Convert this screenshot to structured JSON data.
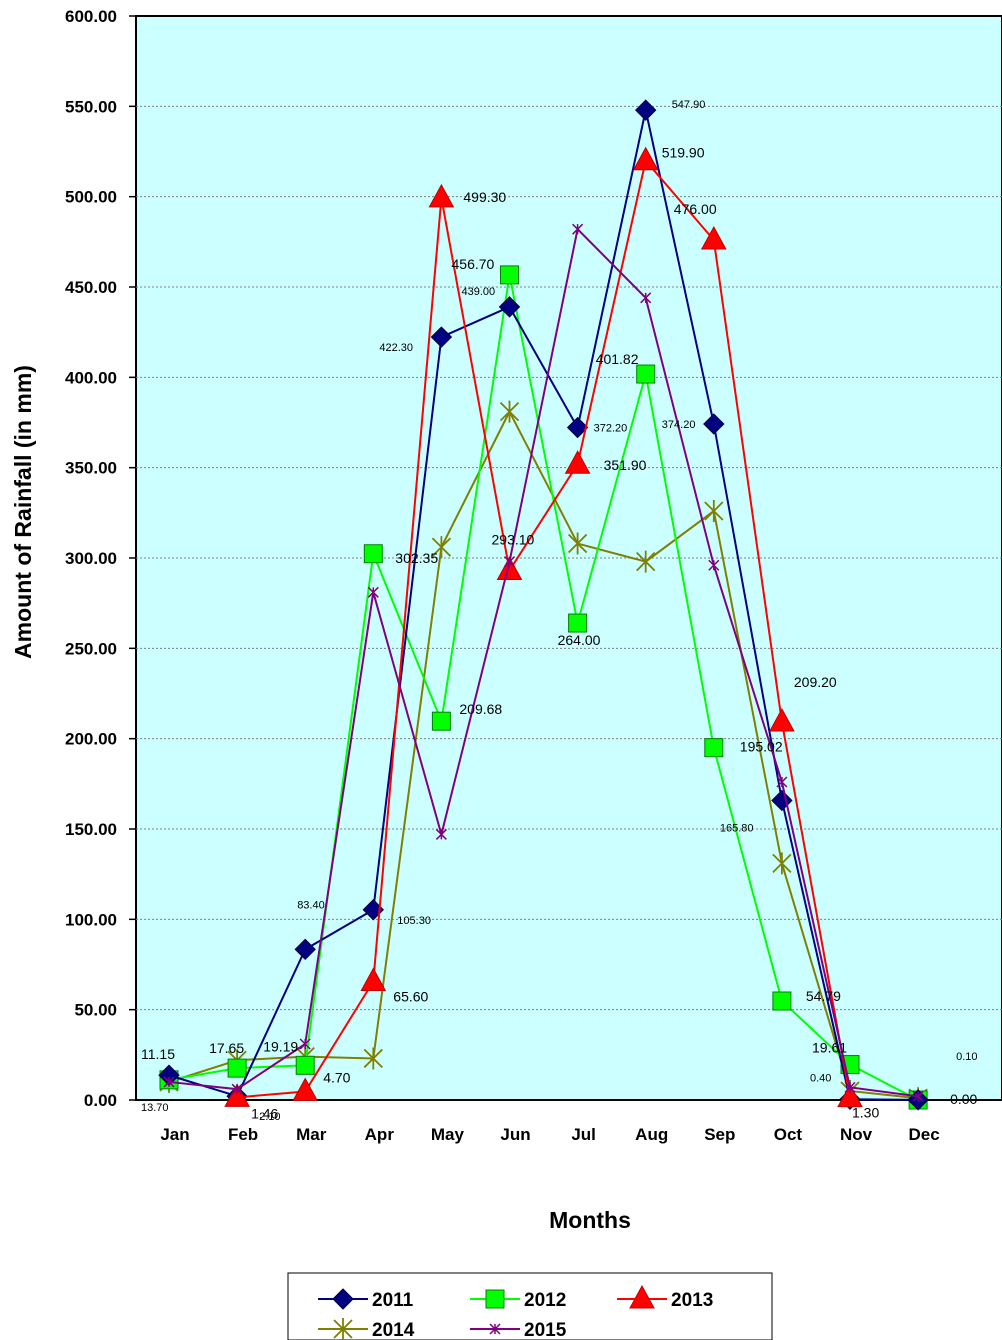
{
  "chart_data": {
    "type": "line",
    "title": "",
    "xlabel": "Months",
    "ylabel": "Amount of Rainfall (in mm)",
    "ylim": [
      0,
      600
    ],
    "y_ticks": [
      "0.00",
      "50.00",
      "100.00",
      "150.00",
      "200.00",
      "250.00",
      "300.00",
      "350.00",
      "400.00",
      "450.00",
      "500.00",
      "550.00",
      "600.00"
    ],
    "grid": "horizontal dotted",
    "plot_background": "#ccffff",
    "legend_position": "bottom",
    "categories": [
      "Jan",
      "Feb",
      "Mar",
      "Apr",
      "May",
      "Jun",
      "Jul",
      "Aug",
      "Sep",
      "Oct",
      "Nov",
      "Dec"
    ],
    "series": [
      {
        "name": "2011",
        "color": "#000080",
        "marker": "diamond",
        "values": [
          13.7,
          2.1,
          83.4,
          105.3,
          422.3,
          439.0,
          372.2,
          547.9,
          374.2,
          165.8,
          0.4,
          0.1
        ]
      },
      {
        "name": "2012",
        "color": "#00ff00",
        "marker": "square",
        "values": [
          11.15,
          17.65,
          19.19,
          302.35,
          209.68,
          456.7,
          264.0,
          401.82,
          195.02,
          54.79,
          19.61,
          0.0
        ]
      },
      {
        "name": "2013",
        "color": "#ff0000",
        "marker": "triangle",
        "values": [
          null,
          1.46,
          4.7,
          65.6,
          499.3,
          293.1,
          351.9,
          519.9,
          476.0,
          209.2,
          1.3,
          null
        ]
      },
      {
        "name": "2014",
        "color": "#808000",
        "marker": "star",
        "values": [
          10,
          22,
          24,
          23,
          306,
          381,
          308,
          298,
          326,
          131,
          5,
          1
        ]
      },
      {
        "name": "2015",
        "color": "#800080",
        "marker": "cross",
        "values": [
          10,
          6,
          31,
          281,
          147,
          298,
          482,
          444,
          296,
          176,
          7,
          2
        ]
      }
    ],
    "data_labels": [
      {
        "text": "13.70",
        "series": 0,
        "index": 0,
        "dx": -28,
        "dy": 36,
        "size": "sm"
      },
      {
        "text": "2.10",
        "series": 0,
        "index": 1,
        "dx": 22,
        "dy": 24,
        "size": "sm"
      },
      {
        "text": "83.40",
        "series": 0,
        "index": 2,
        "dx": -8,
        "dy": -41,
        "size": "sm"
      },
      {
        "text": "105.30",
        "series": 0,
        "index": 3,
        "dx": 24,
        "dy": 14,
        "size": "sm"
      },
      {
        "text": "422.30",
        "series": 0,
        "index": 4,
        "dx": -62,
        "dy": 14,
        "size": "sm"
      },
      {
        "text": "439.00",
        "series": 0,
        "index": 5,
        "dx": -48,
        "dy": -12,
        "size": "sm"
      },
      {
        "text": "372.20",
        "series": 0,
        "index": 6,
        "dx": 16,
        "dy": 4,
        "size": "sm"
      },
      {
        "text": "547.90",
        "series": 0,
        "index": 7,
        "dx": 26,
        "dy": -2,
        "size": "sm"
      },
      {
        "text": "374.20",
        "series": 0,
        "index": 8,
        "dx": -52,
        "dy": 4,
        "size": "sm"
      },
      {
        "text": "165.80",
        "series": 0,
        "index": 9,
        "dx": -62,
        "dy": 31,
        "size": "sm"
      },
      {
        "text": "0.40",
        "series": 0,
        "index": 10,
        "dx": -40,
        "dy": -18,
        "size": "sm"
      },
      {
        "text": "0.10",
        "series": 0,
        "index": 11,
        "dx": 38,
        "dy": -40,
        "size": "sm"
      },
      {
        "text": "11.15",
        "series": 1,
        "index": 0,
        "dx": -28,
        "dy": -21,
        "size": "md"
      },
      {
        "text": "17.65",
        "series": 1,
        "index": 1,
        "dx": -28,
        "dy": -15,
        "size": "md"
      },
      {
        "text": "19.19",
        "series": 1,
        "index": 2,
        "dx": -42,
        "dy": -14,
        "size": "md"
      },
      {
        "text": "302.35",
        "series": 1,
        "index": 3,
        "dx": 22,
        "dy": 9,
        "size": "md"
      },
      {
        "text": "209.68",
        "series": 1,
        "index": 4,
        "dx": 18,
        "dy": -7,
        "size": "md"
      },
      {
        "text": "456.70",
        "series": 1,
        "index": 5,
        "dx": -58,
        "dy": -6,
        "size": "md"
      },
      {
        "text": "264.00",
        "series": 1,
        "index": 6,
        "dx": -20,
        "dy": 22,
        "size": "md"
      },
      {
        "text": "401.82",
        "series": 1,
        "index": 7,
        "dx": -50,
        "dy": -10,
        "size": "md"
      },
      {
        "text": "195.02",
        "series": 1,
        "index": 8,
        "dx": 26,
        "dy": 4,
        "size": "md"
      },
      {
        "text": "54.79",
        "series": 1,
        "index": 9,
        "dx": 24,
        "dy": 0,
        "size": "md"
      },
      {
        "text": "19.61",
        "series": 1,
        "index": 10,
        "dx": -38,
        "dy": -12,
        "size": "md"
      },
      {
        "text": "0.00",
        "series": 1,
        "index": 11,
        "dx": 32,
        "dy": 4,
        "size": "md"
      },
      {
        "text": "1.46",
        "series": 2,
        "index": 1,
        "dx": 14,
        "dy": 21,
        "size": "md"
      },
      {
        "text": "4.70",
        "series": 2,
        "index": 2,
        "dx": 18,
        "dy": -9,
        "size": "md"
      },
      {
        "text": "65.60",
        "series": 2,
        "index": 3,
        "dx": 20,
        "dy": 20,
        "size": "md"
      },
      {
        "text": "499.30",
        "series": 2,
        "index": 4,
        "dx": 22,
        "dy": 4,
        "size": "md"
      },
      {
        "text": "293.10",
        "series": 2,
        "index": 5,
        "dx": -18,
        "dy": -26,
        "size": "md"
      },
      {
        "text": "351.90",
        "series": 2,
        "index": 6,
        "dx": 26,
        "dy": 6,
        "size": "md"
      },
      {
        "text": "519.90",
        "series": 2,
        "index": 7,
        "dx": 16,
        "dy": -3,
        "size": "md"
      },
      {
        "text": "476.00",
        "series": 2,
        "index": 8,
        "dx": -40,
        "dy": -26,
        "size": "md"
      },
      {
        "text": "209.20",
        "series": 2,
        "index": 9,
        "dx": 12,
        "dy": -35,
        "size": "md"
      },
      {
        "text": "1.30",
        "series": 2,
        "index": 10,
        "dx": 2,
        "dy": 20,
        "size": "md"
      }
    ]
  }
}
